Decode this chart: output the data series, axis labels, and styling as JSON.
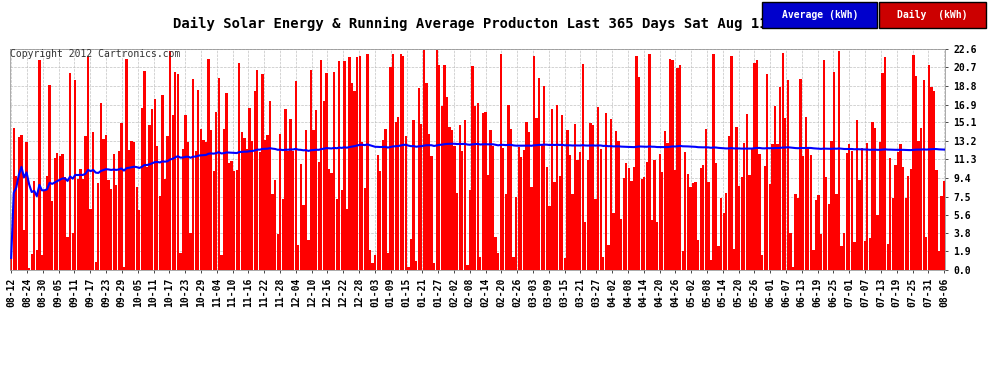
{
  "title": "Daily Solar Energy & Running Average Producton Last 365 Days Sat Aug 11 06:04",
  "copyright": "Copyright 2012 Cartronics.com",
  "yticks": [
    0.0,
    1.9,
    3.8,
    5.6,
    7.5,
    9.4,
    11.3,
    13.2,
    15.1,
    16.9,
    18.8,
    20.7,
    22.6
  ],
  "ymax": 22.6,
  "ymin": 0.0,
  "bar_color": "#ff0000",
  "avg_color": "#0000ff",
  "background_color": "#ffffff",
  "plot_bg_color": "#ffffff",
  "grid_color": "#bbbbbb",
  "legend_avg_bg": "#0000cc",
  "legend_daily_bg": "#cc0000",
  "legend_avg_text": "Average (kWh)",
  "legend_daily_text": "Daily  (kWh)",
  "title_fontsize": 10,
  "copyright_fontsize": 7,
  "tick_fontsize": 7,
  "avg_linewidth": 1.5,
  "num_bars": 365,
  "xtick_labels": [
    "08-12",
    "08-24",
    "08-30",
    "09-05",
    "09-11",
    "09-17",
    "09-23",
    "09-29",
    "10-05",
    "10-11",
    "10-17",
    "10-23",
    "10-29",
    "11-04",
    "11-10",
    "11-16",
    "11-22",
    "11-28",
    "12-04",
    "12-10",
    "12-16",
    "12-22",
    "12-28",
    "01-03",
    "01-09",
    "01-15",
    "01-21",
    "01-27",
    "02-02",
    "02-08",
    "02-14",
    "02-20",
    "02-26",
    "03-03",
    "03-09",
    "03-15",
    "03-21",
    "03-27",
    "04-02",
    "04-08",
    "04-14",
    "04-20",
    "04-26",
    "05-02",
    "05-08",
    "05-14",
    "05-20",
    "05-26",
    "06-01",
    "06-07",
    "06-13",
    "06-19",
    "06-25",
    "07-01",
    "07-07",
    "07-13",
    "07-19",
    "07-25",
    "07-31",
    "08-06"
  ]
}
